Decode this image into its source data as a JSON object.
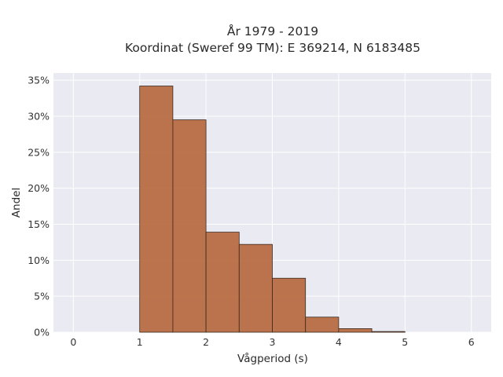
{
  "chart_data": {
    "type": "bar",
    "title_line1": "År 1979 - 2019",
    "title_line2": "Koordinat (Sweref 99 TM): E 369214, N 6183485",
    "xlabel": "Vågperiod (s)",
    "ylabel": "Andel",
    "bin_edges": [
      0,
      0.5,
      1.0,
      1.5,
      2.0,
      2.5,
      3.0,
      3.5,
      4.0,
      4.5,
      5.0,
      5.5,
      6.0
    ],
    "values": [
      0,
      0,
      34.2,
      29.5,
      13.9,
      12.2,
      7.5,
      2.1,
      0.5,
      0.1,
      0,
      0
    ],
    "xlim": [
      -0.3,
      6.3
    ],
    "ylim": [
      0,
      36
    ],
    "xticks": [
      0,
      1,
      2,
      3,
      4,
      5,
      6
    ],
    "xtick_labels": [
      "0",
      "1",
      "2",
      "3",
      "4",
      "5",
      "6"
    ],
    "yticks": [
      0,
      5,
      10,
      15,
      20,
      25,
      30,
      35
    ],
    "ytick_labels": [
      "0%",
      "5%",
      "10%",
      "15%",
      "20%",
      "25%",
      "30%",
      "35%"
    ],
    "grid": true,
    "legend": "none",
    "bar_color": "#b5663a",
    "bar_edge_color": "#3a2a1f",
    "plot_bg": "#eaeaf2"
  }
}
